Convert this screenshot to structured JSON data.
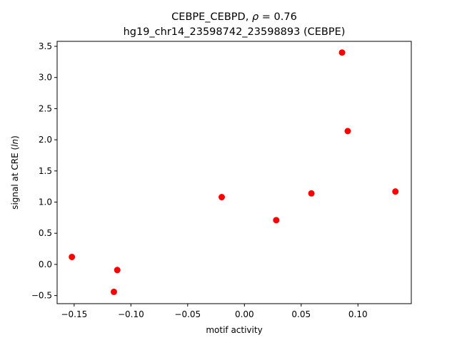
{
  "chart_data": {
    "type": "scatter",
    "title_line1": "CEBPE_CEBPD, ρ = 0.76",
    "title_line2": "hg19_chr14_23598742_23598893 (CEBPE)",
    "xlabel": "motif activity",
    "ylabel": "signal at CRE (ln)",
    "xlim": [
      -0.165,
      0.147
    ],
    "ylim": [
      -0.63,
      3.58
    ],
    "xticks": [
      -0.15,
      -0.1,
      -0.05,
      0.0,
      0.05,
      0.1
    ],
    "xtick_labels": [
      "−0.15",
      "−0.10",
      "−0.05",
      "0.00",
      "0.05",
      "0.10"
    ],
    "yticks": [
      -0.5,
      0.0,
      0.5,
      1.0,
      1.5,
      2.0,
      2.5,
      3.0,
      3.5
    ],
    "ytick_labels": [
      "−0.5",
      "0.0",
      "0.5",
      "1.0",
      "1.5",
      "2.0",
      "2.5",
      "3.0",
      "3.5"
    ],
    "point_color": "#ff0000",
    "grid": false,
    "points": [
      {
        "x": -0.152,
        "y": 0.12
      },
      {
        "x": -0.112,
        "y": -0.09
      },
      {
        "x": -0.115,
        "y": -0.44
      },
      {
        "x": -0.02,
        "y": 1.08
      },
      {
        "x": 0.028,
        "y": 0.71
      },
      {
        "x": 0.059,
        "y": 1.14
      },
      {
        "x": 0.086,
        "y": 3.4
      },
      {
        "x": 0.091,
        "y": 2.14
      },
      {
        "x": 0.133,
        "y": 1.17
      }
    ]
  }
}
